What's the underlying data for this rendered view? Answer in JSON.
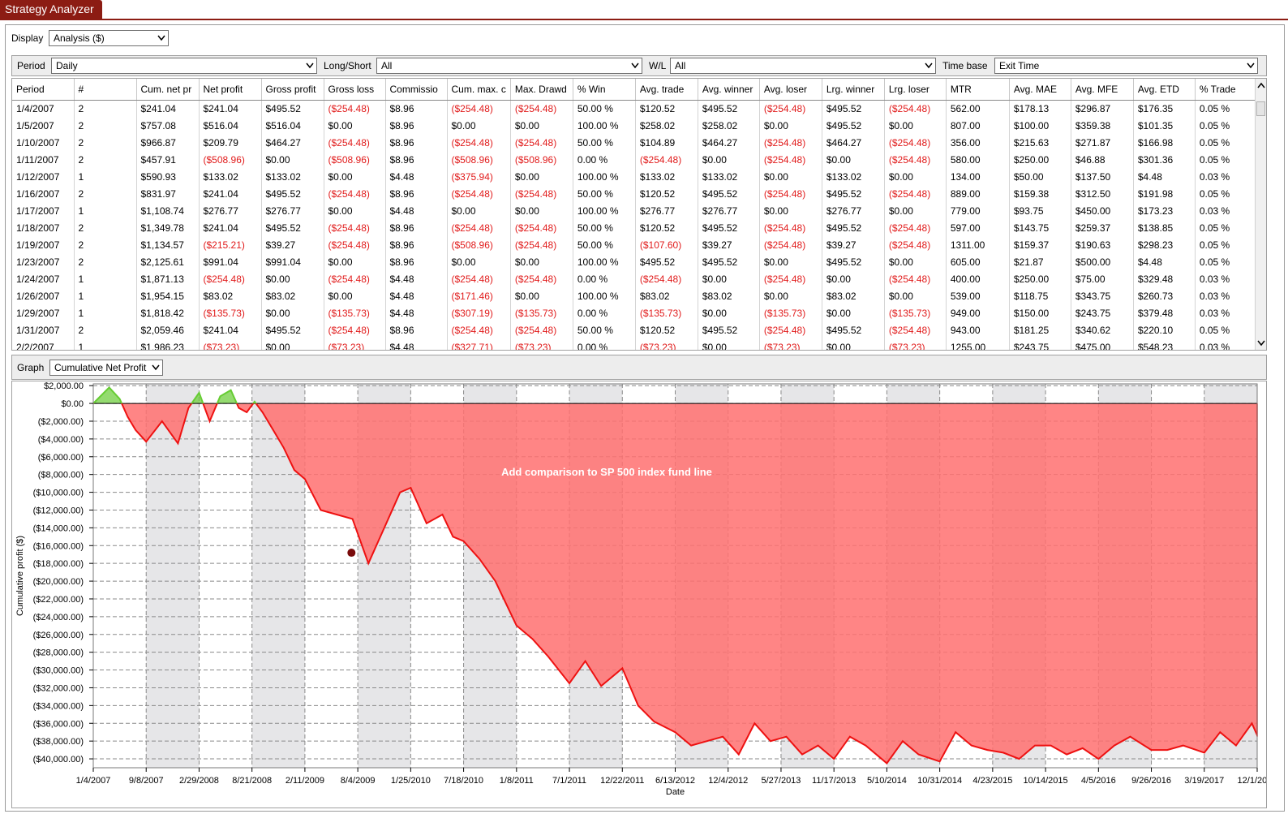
{
  "app": {
    "title": "Strategy Analyzer"
  },
  "display": {
    "label": "Display",
    "value": "Analysis ($)"
  },
  "filters": {
    "period_label": "Period",
    "period_value": "Daily",
    "longshort_label": "Long/Short",
    "longshort_value": "All",
    "wl_label": "W/L",
    "wl_value": "All",
    "timebase_label": "Time base",
    "timebase_value": "Exit Time"
  },
  "table": {
    "columns": [
      "Period",
      "#",
      "Cum. net pr",
      "Net profit",
      "Gross profit",
      "Gross loss",
      "Commissio",
      "Cum. max. c",
      "Max. Drawd",
      "% Win",
      "Avg. trade",
      "Avg. winner",
      "Avg. loser",
      "Lrg. winner",
      "Lrg. loser",
      "MTR",
      "Avg. MAE",
      "Avg. MFE",
      "Avg. ETD",
      "% Trade"
    ],
    "rows": [
      [
        "1/4/2007",
        "2",
        "$241.04",
        "$241.04",
        "$495.52",
        "($254.48)",
        "$8.96",
        "($254.48)",
        "($254.48)",
        "50.00 %",
        "$120.52",
        "$495.52",
        "($254.48)",
        "$495.52",
        "($254.48)",
        "562.00",
        "$178.13",
        "$296.87",
        "$176.35",
        "0.05 %"
      ],
      [
        "1/5/2007",
        "2",
        "$757.08",
        "$516.04",
        "$516.04",
        "$0.00",
        "$8.96",
        "$0.00",
        "$0.00",
        "100.00 %",
        "$258.02",
        "$258.02",
        "$0.00",
        "$495.52",
        "$0.00",
        "807.00",
        "$100.00",
        "$359.38",
        "$101.35",
        "0.05 %"
      ],
      [
        "1/10/2007",
        "2",
        "$966.87",
        "$209.79",
        "$464.27",
        "($254.48)",
        "$8.96",
        "($254.48)",
        "($254.48)",
        "50.00 %",
        "$104.89",
        "$464.27",
        "($254.48)",
        "$464.27",
        "($254.48)",
        "356.00",
        "$215.63",
        "$271.87",
        "$166.98",
        "0.05 %"
      ],
      [
        "1/11/2007",
        "2",
        "$457.91",
        "($508.96)",
        "$0.00",
        "($508.96)",
        "$8.96",
        "($508.96)",
        "($508.96)",
        "0.00 %",
        "($254.48)",
        "$0.00",
        "($254.48)",
        "$0.00",
        "($254.48)",
        "580.00",
        "$250.00",
        "$46.88",
        "$301.36",
        "0.05 %"
      ],
      [
        "1/12/2007",
        "1",
        "$590.93",
        "$133.02",
        "$133.02",
        "$0.00",
        "$4.48",
        "($375.94)",
        "$0.00",
        "100.00 %",
        "$133.02",
        "$133.02",
        "$0.00",
        "$133.02",
        "$0.00",
        "134.00",
        "$50.00",
        "$137.50",
        "$4.48",
        "0.03 %"
      ],
      [
        "1/16/2007",
        "2",
        "$831.97",
        "$241.04",
        "$495.52",
        "($254.48)",
        "$8.96",
        "($254.48)",
        "($254.48)",
        "50.00 %",
        "$120.52",
        "$495.52",
        "($254.48)",
        "$495.52",
        "($254.48)",
        "889.00",
        "$159.38",
        "$312.50",
        "$191.98",
        "0.05 %"
      ],
      [
        "1/17/2007",
        "1",
        "$1,108.74",
        "$276.77",
        "$276.77",
        "$0.00",
        "$4.48",
        "$0.00",
        "$0.00",
        "100.00 %",
        "$276.77",
        "$276.77",
        "$0.00",
        "$276.77",
        "$0.00",
        "779.00",
        "$93.75",
        "$450.00",
        "$173.23",
        "0.03 %"
      ],
      [
        "1/18/2007",
        "2",
        "$1,349.78",
        "$241.04",
        "$495.52",
        "($254.48)",
        "$8.96",
        "($254.48)",
        "($254.48)",
        "50.00 %",
        "$120.52",
        "$495.52",
        "($254.48)",
        "$495.52",
        "($254.48)",
        "597.00",
        "$143.75",
        "$259.37",
        "$138.85",
        "0.05 %"
      ],
      [
        "1/19/2007",
        "2",
        "$1,134.57",
        "($215.21)",
        "$39.27",
        "($254.48)",
        "$8.96",
        "($508.96)",
        "($254.48)",
        "50.00 %",
        "($107.60)",
        "$39.27",
        "($254.48)",
        "$39.27",
        "($254.48)",
        "1311.00",
        "$159.37",
        "$190.63",
        "$298.23",
        "0.05 %"
      ],
      [
        "1/23/2007",
        "2",
        "$2,125.61",
        "$991.04",
        "$991.04",
        "$0.00",
        "$8.96",
        "$0.00",
        "$0.00",
        "100.00 %",
        "$495.52",
        "$495.52",
        "$0.00",
        "$495.52",
        "$0.00",
        "605.00",
        "$21.87",
        "$500.00",
        "$4.48",
        "0.05 %"
      ],
      [
        "1/24/2007",
        "1",
        "$1,871.13",
        "($254.48)",
        "$0.00",
        "($254.48)",
        "$4.48",
        "($254.48)",
        "($254.48)",
        "0.00 %",
        "($254.48)",
        "$0.00",
        "($254.48)",
        "$0.00",
        "($254.48)",
        "400.00",
        "$250.00",
        "$75.00",
        "$329.48",
        "0.03 %"
      ],
      [
        "1/26/2007",
        "1",
        "$1,954.15",
        "$83.02",
        "$83.02",
        "$0.00",
        "$4.48",
        "($171.46)",
        "$0.00",
        "100.00 %",
        "$83.02",
        "$83.02",
        "$0.00",
        "$83.02",
        "$0.00",
        "539.00",
        "$118.75",
        "$343.75",
        "$260.73",
        "0.03 %"
      ],
      [
        "1/29/2007",
        "1",
        "$1,818.42",
        "($135.73)",
        "$0.00",
        "($135.73)",
        "$4.48",
        "($307.19)",
        "($135.73)",
        "0.00 %",
        "($135.73)",
        "$0.00",
        "($135.73)",
        "$0.00",
        "($135.73)",
        "949.00",
        "$150.00",
        "$243.75",
        "$379.48",
        "0.03 %"
      ],
      [
        "1/31/2007",
        "2",
        "$2,059.46",
        "$241.04",
        "$495.52",
        "($254.48)",
        "$8.96",
        "($254.48)",
        "($254.48)",
        "50.00 %",
        "$120.52",
        "$495.52",
        "($254.48)",
        "$495.52",
        "($254.48)",
        "943.00",
        "$181.25",
        "$340.62",
        "$220.10",
        "0.05 %"
      ],
      [
        "2/2/2007",
        "1",
        "$1,986.23",
        "($73.23)",
        "$0.00",
        "($73.23)",
        "$4.48",
        "($327.71)",
        "($73.23)",
        "0.00 %",
        "($73.23)",
        "$0.00",
        "($73.23)",
        "$0.00",
        "($73.23)",
        "1255.00",
        "$243.75",
        "$475.00",
        "$548.23",
        "0.03 %"
      ]
    ]
  },
  "graph": {
    "label": "Graph",
    "value": "Cumulative Net Profit"
  },
  "chart_data": {
    "type": "area",
    "title": "",
    "ylabel": "Cumulative profit ($)",
    "xlabel": "Date",
    "annotation": "Add comparison to SP 500 index fund line",
    "ylim": [
      -41000,
      2200
    ],
    "yticks": [
      2000,
      0,
      -2000,
      -4000,
      -6000,
      -8000,
      -10000,
      -12000,
      -14000,
      -16000,
      -18000,
      -20000,
      -22000,
      -24000,
      -26000,
      -28000,
      -30000,
      -32000,
      -34000,
      -36000,
      -38000,
      -40000
    ],
    "ytick_labels": [
      "$2,000.00",
      "$0.00",
      "($2,000.00)",
      "($4,000.00)",
      "($6,000.00)",
      "($8,000.00)",
      "($10,000.00)",
      "($12,000.00)",
      "($14,000.00)",
      "($16,000.00)",
      "($18,000.00)",
      "($20,000.00)",
      "($22,000.00)",
      "($24,000.00)",
      "($26,000.00)",
      "($28,000.00)",
      "($30,000.00)",
      "($32,000.00)",
      "($34,000.00)",
      "($36,000.00)",
      "($38,000.00)",
      "($40,000.00)"
    ],
    "xticks": [
      "1/4/2007",
      "9/8/2007",
      "2/29/2008",
      "8/21/2008",
      "2/11/2009",
      "8/4/2009",
      "1/25/2010",
      "7/18/2010",
      "1/8/2011",
      "7/1/2011",
      "12/22/2011",
      "6/13/2012",
      "12/4/2012",
      "5/27/2013",
      "11/17/2013",
      "5/10/2014",
      "10/31/2014",
      "4/23/2015",
      "10/14/2015",
      "4/5/2016",
      "9/26/2016",
      "3/19/2017",
      "12/1/2017"
    ],
    "grid": true,
    "colors": {
      "profit": "#66cc33",
      "loss_line": "#ee1111",
      "drawdown_fill": "#ff7070",
      "marker": "#7a0b0b",
      "band": "#e6e6e8"
    },
    "x": [
      0,
      0.3,
      0.5,
      0.65,
      0.8,
      1.0,
      1.3,
      1.6,
      1.8,
      2.0,
      2.2,
      2.4,
      2.6,
      2.75,
      2.9,
      3.05,
      3.2,
      3.4,
      3.6,
      3.8,
      4.0,
      4.3,
      4.6,
      4.9,
      5.2,
      5.5,
      5.8,
      6.0,
      6.3,
      6.6,
      6.8,
      7.0,
      7.3,
      7.6,
      8.0,
      8.3,
      8.6,
      9.0,
      9.3,
      9.6,
      10.0,
      10.3,
      10.6,
      11.0,
      11.3,
      11.6,
      11.9,
      12.2,
      12.5,
      12.8,
      13.1,
      13.4,
      13.7,
      14.0,
      14.3,
      14.6,
      15.0,
      15.3,
      15.6,
      16.0,
      16.3,
      16.6,
      16.9,
      17.2,
      17.5,
      17.8,
      18.1,
      18.4,
      18.7,
      19.0,
      19.3,
      19.6,
      20.0,
      20.3,
      20.6,
      21.0,
      21.3,
      21.6,
      21.9,
      22.2,
      22.5,
      22.8,
      23.0
    ],
    "y": [
      0,
      1800,
      500,
      -1500,
      -3000,
      -4300,
      -2000,
      -4500,
      -500,
      1200,
      -2000,
      800,
      1500,
      -500,
      -1000,
      200,
      -1000,
      -3000,
      -5000,
      -7500,
      -8500,
      -12000,
      -12500,
      -13000,
      -18000,
      -14000,
      -10000,
      -9500,
      -13500,
      -12500,
      -15000,
      -15500,
      -17500,
      -20000,
      -25000,
      -26500,
      -28500,
      -31500,
      -29000,
      -31800,
      -29800,
      -34000,
      -35800,
      -37000,
      -38500,
      -38000,
      -37500,
      -39500,
      -36000,
      -38000,
      -37500,
      -39500,
      -38500,
      -40000,
      -37500,
      -38500,
      -40500,
      -38000,
      -39500,
      -40300,
      -37000,
      -38500,
      -39000,
      -39300,
      -40000,
      -38500,
      -38500,
      -39500,
      -38800,
      -40000,
      -38500,
      -37500,
      -39000,
      -39000,
      -38500,
      -39300,
      -37000,
      -38500,
      -36000,
      -40000,
      -37000,
      -39000,
      -37500
    ],
    "marker": {
      "x": 4.88,
      "y": -16800
    }
  }
}
